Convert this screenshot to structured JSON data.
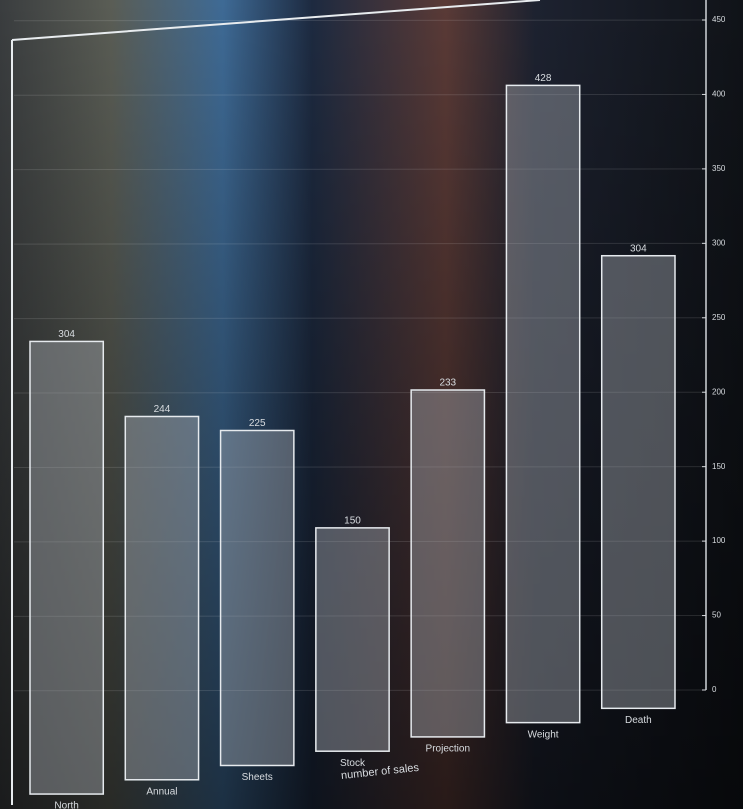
{
  "chart_data": {
    "type": "bar",
    "x_label": "number of sales",
    "categories": [
      "North",
      "Annual",
      "Sheets",
      "Stock",
      "Projection",
      "Weight",
      "Death"
    ],
    "values": [
      304,
      244,
      225,
      150,
      233,
      428,
      304
    ],
    "color": "#a9afb6",
    "ylim": [
      0,
      450
    ],
    "yticks": [
      0,
      50,
      100,
      150,
      200,
      250,
      300,
      350,
      400,
      450
    ],
    "grid": true
  }
}
